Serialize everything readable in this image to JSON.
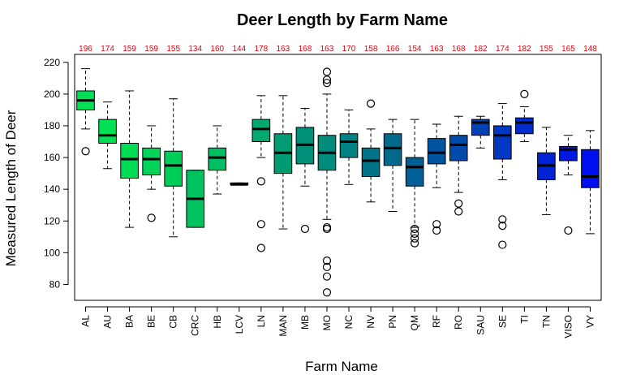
{
  "chart_data": {
    "type": "boxplot",
    "title": "Deer Length by Farm Name",
    "xlabel": "Farm Name",
    "ylabel": "Measured Length of Deer",
    "ylim": [
      70,
      225
    ],
    "yticks": [
      80,
      100,
      120,
      140,
      160,
      180,
      200,
      220
    ],
    "grid": false,
    "count_color": "#e8000d",
    "categories": [
      "AL",
      "AU",
      "BA",
      "BE",
      "CB",
      "CRC",
      "HB",
      "LCV",
      "LN",
      "MAN",
      "MB",
      "MO",
      "NC",
      "NV",
      "PN",
      "QM",
      "RF",
      "RO",
      "SAU",
      "SE",
      "TI",
      "TN",
      "VISO",
      "VY"
    ],
    "counts": [
      "196",
      "174",
      "159",
      "159",
      "155",
      "134",
      "160",
      "144",
      "178",
      "163",
      "168",
      "163",
      "170",
      "158",
      "166",
      "154",
      "163",
      "168",
      "182",
      "174",
      "182",
      "155",
      "165",
      "148"
    ],
    "colors": [
      "#00e055",
      "#00e055",
      "#00dc55",
      "#00d25a",
      "#00cd5a",
      "#00c35f",
      "#00be64",
      "#00b468",
      "#00aa6e",
      "#009b73",
      "#008f78",
      "#008c7d",
      "#008282",
      "#007387",
      "#00698c",
      "#005f96",
      "#0055a0",
      "#004baa",
      "#0041b4",
      "#0037c3",
      "#002dcd",
      "#0023d7",
      "#0019e1",
      "#000ff0"
    ],
    "boxes": [
      {
        "q1": 190,
        "median": 196,
        "q3": 202,
        "whisker_low": 178,
        "whisker_high": 216,
        "outliers": [
          164
        ]
      },
      {
        "q1": 169,
        "median": 174,
        "q3": 184,
        "whisker_low": 153,
        "whisker_high": 195,
        "outliers": []
      },
      {
        "q1": 147,
        "median": 159,
        "q3": 169,
        "whisker_low": 116,
        "whisker_high": 202,
        "outliers": []
      },
      {
        "q1": 149,
        "median": 159,
        "q3": 166,
        "whisker_low": 140,
        "whisker_high": 180,
        "outliers": [
          122
        ]
      },
      {
        "q1": 142,
        "median": 155,
        "q3": 164,
        "whisker_low": 110,
        "whisker_high": 197,
        "outliers": []
      },
      {
        "q1": 116,
        "median": 134,
        "q3": 152,
        "whisker_low": 116,
        "whisker_high": 152,
        "outliers": []
      },
      {
        "q1": 152,
        "median": 160,
        "q3": 166,
        "whisker_low": 137,
        "whisker_high": 180,
        "outliers": []
      },
      {
        "q1": 143,
        "median": 143,
        "q3": 144,
        "whisker_low": 143,
        "whisker_high": 144,
        "outliers": []
      },
      {
        "q1": 170,
        "median": 178,
        "q3": 184,
        "whisker_low": 160,
        "whisker_high": 199,
        "outliers": [
          145,
          118,
          103
        ]
      },
      {
        "q1": 150,
        "median": 163,
        "q3": 175,
        "whisker_low": 115,
        "whisker_high": 199,
        "outliers": []
      },
      {
        "q1": 156,
        "median": 168,
        "q3": 179,
        "whisker_low": 142,
        "whisker_high": 191,
        "outliers": [
          115
        ]
      },
      {
        "q1": 152,
        "median": 163,
        "q3": 174,
        "whisker_low": 121,
        "whisker_high": 200,
        "outliers": [
          214,
          209,
          207,
          116,
          115,
          95,
          91,
          85,
          75
        ]
      },
      {
        "q1": 160,
        "median": 170,
        "q3": 175,
        "whisker_low": 143,
        "whisker_high": 190,
        "outliers": []
      },
      {
        "q1": 148,
        "median": 158,
        "q3": 166,
        "whisker_low": 132,
        "whisker_high": 178,
        "outliers": [
          194
        ]
      },
      {
        "q1": 155,
        "median": 166,
        "q3": 175,
        "whisker_low": 126,
        "whisker_high": 184,
        "outliers": []
      },
      {
        "q1": 142,
        "median": 154,
        "q3": 160,
        "whisker_low": 116,
        "whisker_high": 184,
        "outliers": [
          115,
          112,
          109,
          106
        ]
      },
      {
        "q1": 156,
        "median": 163,
        "q3": 172,
        "whisker_low": 141,
        "whisker_high": 181,
        "outliers": [
          118,
          114
        ]
      },
      {
        "q1": 158,
        "median": 168,
        "q3": 174,
        "whisker_low": 138,
        "whisker_high": 186,
        "outliers": [
          131,
          126
        ]
      },
      {
        "q1": 174,
        "median": 182,
        "q3": 184,
        "whisker_low": 166,
        "whisker_high": 186,
        "outliers": []
      },
      {
        "q1": 159,
        "median": 174,
        "q3": 180,
        "whisker_low": 146,
        "whisker_high": 194,
        "outliers": [
          121,
          117,
          105
        ]
      },
      {
        "q1": 175,
        "median": 182,
        "q3": 185,
        "whisker_low": 170,
        "whisker_high": 192,
        "outliers": [
          200
        ]
      },
      {
        "q1": 146,
        "median": 155,
        "q3": 163,
        "whisker_low": 124,
        "whisker_high": 179,
        "outliers": []
      },
      {
        "q1": 158,
        "median": 165,
        "q3": 167,
        "whisker_low": 149,
        "whisker_high": 174,
        "outliers": [
          114
        ]
      },
      {
        "q1": 141,
        "median": 148,
        "q3": 165,
        "whisker_low": 112,
        "whisker_high": 177,
        "outliers": []
      }
    ]
  }
}
